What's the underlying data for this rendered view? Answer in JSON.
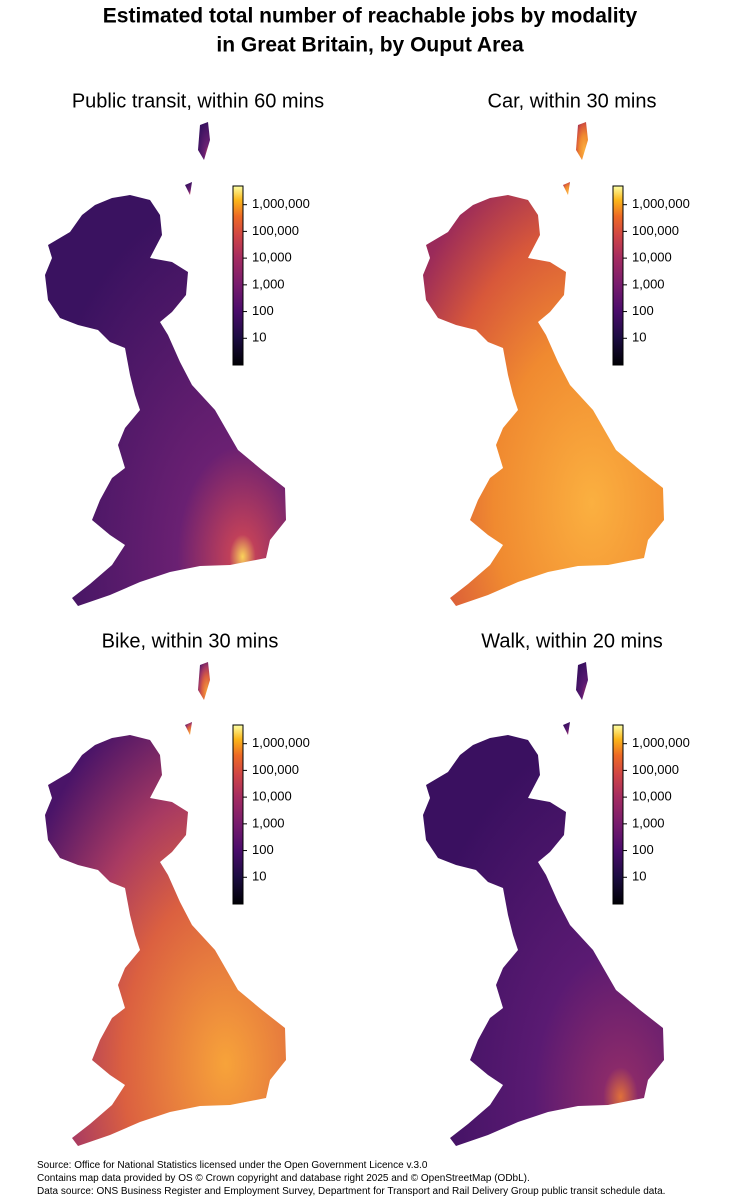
{
  "title": [
    "Estimated total number of reachable jobs by modality",
    "in Great Britain, by Ouput Area"
  ],
  "panels": [
    {
      "title": "Public transit, within 60 mins",
      "colorbar": {
        "scale": "log",
        "lim": [
          1,
          5000000
        ],
        "ticks": [
          10,
          100,
          {
            "value": 1000,
            "label": "1,000"
          },
          {
            "value": 10000,
            "label": "10,000"
          },
          {
            "value": 100000,
            "label": "100,000"
          },
          {
            "value": 1000000,
            "label": "1,000,000"
          }
        ]
      }
    },
    {
      "title": "Car, within 30 mins",
      "colorbar": {
        "scale": "log",
        "lim": [
          1,
          5000000
        ],
        "ticks": [
          10,
          100,
          {
            "value": 1000,
            "label": "1,000"
          },
          {
            "value": 10000,
            "label": "10,000"
          },
          {
            "value": 100000,
            "label": "100,000"
          },
          {
            "value": 1000000,
            "label": "1,000,000"
          }
        ]
      }
    },
    {
      "title": "Bike, within 30 mins",
      "colorbar": {
        "scale": "log",
        "lim": [
          1,
          5000000
        ],
        "ticks": [
          10,
          100,
          {
            "value": 1000,
            "label": "1,000"
          },
          {
            "value": 10000,
            "label": "10,000"
          },
          {
            "value": 100000,
            "label": "100,000"
          },
          {
            "value": 1000000,
            "label": "1,000,000"
          }
        ]
      }
    },
    {
      "title": "Walk, within 20 mins",
      "colorbar": {
        "scale": "log",
        "lim": [
          1,
          5000000
        ],
        "ticks": [
          10,
          100,
          {
            "value": 1000,
            "label": "1,000"
          },
          {
            "value": 10000,
            "label": "10,000"
          },
          {
            "value": 100000,
            "label": "100,000"
          },
          {
            "value": 1000000,
            "label": "1,000,000"
          }
        ]
      }
    }
  ],
  "footnote": [
    "Source: Office for National Statistics licensed under the Open Government Licence v.3.0",
    "Contains map data provided by OS © Crown copyright and database right 2025 and © OpenStreetMap (ODbL).",
    "Data source: ONS Business Register and Employment Survey, Department for Transport and Rail Delivery Group public transit schedule data."
  ]
}
